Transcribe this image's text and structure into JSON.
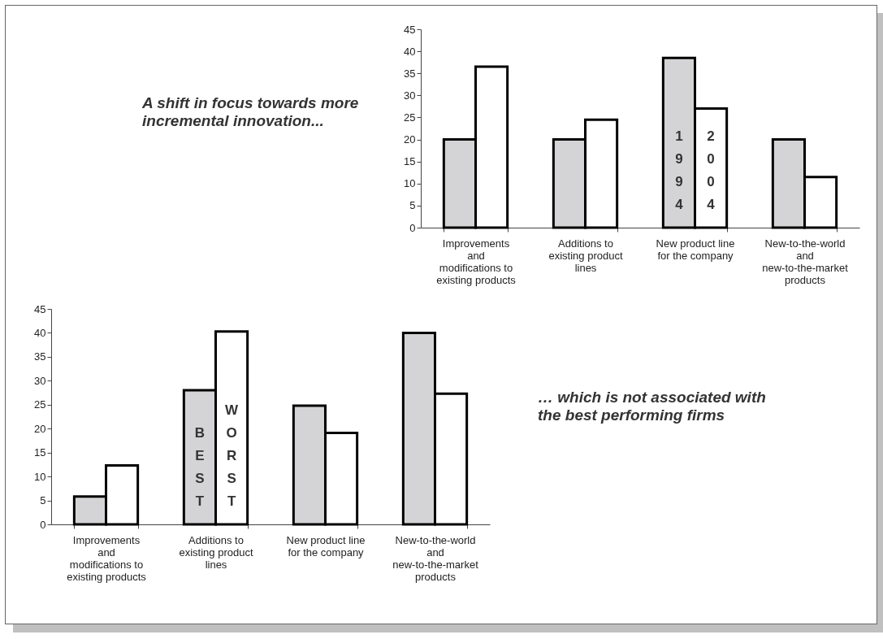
{
  "chart_data": [
    {
      "type": "bar",
      "annotations": [
        "A shift in focus towards more incremental innovation..."
      ],
      "categories": [
        "Improvements and modifications to existing products",
        "Additions to existing product lines",
        "New product line for the company",
        "New-to-the-world and new-to-the-market products"
      ],
      "series": [
        {
          "name": "1994",
          "color": "#d4d4d6",
          "values": [
            20,
            20,
            38.5,
            20
          ]
        },
        {
          "name": "2004",
          "color": "#ffffff",
          "values": [
            36.5,
            24.5,
            27,
            11.5
          ]
        }
      ],
      "ylim": [
        0,
        45
      ],
      "yticks": [
        0,
        5,
        10,
        15,
        20,
        25,
        30,
        35,
        40,
        45
      ]
    },
    {
      "type": "bar",
      "annotations": [
        "… which is not associated with the best performing firms"
      ],
      "categories": [
        "Improvements and modifications to existing products",
        "Additions to existing product lines",
        "New product line for the company",
        "New-to-the-world and new-to-the-market products"
      ],
      "series": [
        {
          "name": "BEST",
          "color": "#d4d4d6",
          "values": [
            5.8,
            28,
            24.8,
            40
          ]
        },
        {
          "name": "WORST",
          "color": "#ffffff",
          "values": [
            12.3,
            40.3,
            19.1,
            27.3
          ]
        }
      ],
      "ylim": [
        0,
        45
      ],
      "yticks": [
        0,
        5,
        10,
        15,
        20,
        25,
        30,
        35,
        40,
        45
      ]
    }
  ]
}
